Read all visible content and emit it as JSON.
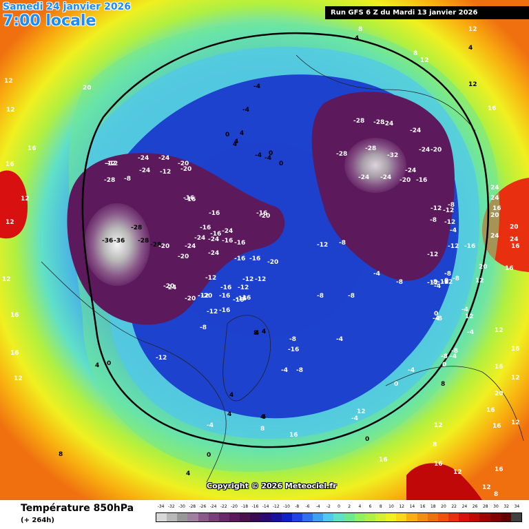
{
  "header": {
    "date_line": "Samedi 24 janvier 2026",
    "time_line": "7:00 locale",
    "run_banner": "Run GFS 6 Z du Mardi 13 janvier 2026"
  },
  "footer": {
    "parameter_title": "Température 850hPa",
    "forecast_hours": "(+ 264h)",
    "copyright": "Copyright © 2026 Meteociel.fr"
  },
  "legend": {
    "unit_values": [
      "-34",
      "-32",
      "-30",
      "-28",
      "-26",
      "-24",
      "-22",
      "-20",
      "-18",
      "-16",
      "-14",
      "-12",
      "-10",
      "-8",
      "-6",
      "-4",
      "-2",
      "0",
      "2",
      "4",
      "6",
      "8",
      "10",
      "12",
      "14",
      "16",
      "18",
      "20",
      "22",
      "24",
      "26",
      "28",
      "30",
      "32",
      "34"
    ],
    "colors": [
      "#d8d8d8",
      "#b8b8b8",
      "#989898",
      "#a080a0",
      "#8a5a8a",
      "#784078",
      "#6a2a6a",
      "#5c1a5c",
      "#4a124a",
      "#3a0a50",
      "#2a0a70",
      "#1a10a0",
      "#1020c8",
      "#2040e8",
      "#3070f0",
      "#40a0f0",
      "#50c8f0",
      "#60e0c8",
      "#70e890",
      "#90f060",
      "#b0f040",
      "#d0f030",
      "#f0f020",
      "#f8d818",
      "#f8b010",
      "#f09010",
      "#f07010",
      "#f05010",
      "#e83010",
      "#d81010",
      "#c00808",
      "#a00000",
      "#800000",
      "#600000",
      "#404040"
    ]
  },
  "map": {
    "labels": [
      {
        "t": "-36",
        "c": "dark"
      },
      {
        "t": "-36",
        "c": "dark"
      },
      {
        "t": "-28",
        "c": "dark"
      },
      {
        "t": "-28",
        "c": "dark"
      },
      {
        "t": "-28",
        "c": "dark"
      },
      {
        "t": "-24",
        "c": "w"
      },
      {
        "t": "-24",
        "c": "w"
      },
      {
        "t": "-20",
        "c": "w"
      },
      {
        "t": "-20",
        "c": "w"
      },
      {
        "t": "-24",
        "c": "w"
      },
      {
        "t": "-24",
        "c": "w"
      },
      {
        "t": "-24",
        "c": "w"
      },
      {
        "t": "-20",
        "c": "w"
      },
      {
        "t": "-24",
        "c": "w"
      },
      {
        "t": "-16",
        "c": "w"
      },
      {
        "t": "-16",
        "c": "w"
      },
      {
        "t": "-24",
        "c": "w"
      },
      {
        "t": "-16",
        "c": "w"
      },
      {
        "t": "-16",
        "c": "w"
      },
      {
        "t": "-20",
        "c": "w"
      },
      {
        "t": "-16",
        "c": "w"
      },
      {
        "t": "-12",
        "c": "w"
      },
      {
        "t": "-12",
        "c": "w"
      },
      {
        "t": "-16",
        "c": "w"
      },
      {
        "t": "-12",
        "c": "w"
      },
      {
        "t": "-12",
        "c": "w"
      },
      {
        "t": "-8",
        "c": "w"
      },
      {
        "t": "-12",
        "c": "w"
      },
      {
        "t": "-8",
        "c": "w"
      },
      {
        "t": "-12",
        "c": "w"
      },
      {
        "t": "-16",
        "c": "w"
      },
      {
        "t": "-20",
        "c": "w"
      },
      {
        "t": "-16",
        "c": "w"
      },
      {
        "t": "-16",
        "c": "w"
      },
      {
        "t": "-20",
        "c": "w"
      },
      {
        "t": "-28",
        "c": "w"
      },
      {
        "t": "-24",
        "c": "w"
      },
      {
        "t": "-12",
        "c": "w"
      },
      {
        "t": "-20",
        "c": "w"
      },
      {
        "t": "-24",
        "c": "w"
      },
      {
        "t": "-20",
        "c": "w"
      },
      {
        "t": "-16",
        "c": "w"
      },
      {
        "t": "-16",
        "c": "w"
      },
      {
        "t": "-12",
        "c": "w"
      },
      {
        "t": "-12",
        "c": "w"
      },
      {
        "t": "-16",
        "c": "w"
      },
      {
        "t": "-16",
        "c": "w"
      },
      {
        "t": "-16",
        "c": "w"
      },
      {
        "t": "-12",
        "c": "w"
      },
      {
        "t": "-8",
        "c": "w"
      },
      {
        "t": "-4",
        "c": "w"
      },
      {
        "t": "-8",
        "c": "w"
      },
      {
        "t": "-4",
        "c": "w"
      },
      {
        "t": "-8",
        "c": "w"
      },
      {
        "t": "-8",
        "c": "w"
      },
      {
        "t": "-12",
        "c": "w"
      },
      {
        "t": "-8",
        "c": "w"
      },
      {
        "t": "-4",
        "c": "w"
      },
      {
        "t": "0",
        "c": "w"
      },
      {
        "t": "-4",
        "c": "w"
      },
      {
        "t": "-8",
        "c": "w"
      },
      {
        "t": "0",
        "c": "w"
      },
      {
        "t": "0",
        "c": "w"
      },
      {
        "t": "4",
        "c": "dark"
      },
      {
        "t": "4",
        "c": "dark"
      },
      {
        "t": "4",
        "c": "dark"
      },
      {
        "t": "0",
        "c": "dark"
      },
      {
        "t": "0",
        "c": "dark"
      },
      {
        "t": "-4",
        "c": "dark"
      },
      {
        "t": "-4",
        "c": "dark"
      },
      {
        "t": "0",
        "c": "dark"
      },
      {
        "t": "-4",
        "c": "dark"
      },
      {
        "t": "4",
        "c": "dark"
      },
      {
        "t": "4",
        "c": "dark"
      },
      {
        "t": "-4",
        "c": "dark"
      },
      {
        "t": "-12",
        "c": "w"
      },
      {
        "t": "-16",
        "c": "w"
      },
      {
        "t": "-20",
        "c": "w"
      },
      {
        "t": "-16",
        "c": "w"
      },
      {
        "t": "-28",
        "c": "w"
      },
      {
        "t": "-28",
        "c": "w"
      },
      {
        "t": "-24",
        "c": "w"
      },
      {
        "t": "-24",
        "c": "w"
      },
      {
        "t": "-20",
        "c": "w"
      },
      {
        "t": "-24",
        "c": "w"
      },
      {
        "t": "-32",
        "c": "w"
      },
      {
        "t": "-28",
        "c": "w"
      },
      {
        "t": "-28",
        "c": "w"
      },
      {
        "t": "-24",
        "c": "w"
      },
      {
        "t": "-24",
        "c": "w"
      },
      {
        "t": "-24",
        "c": "w"
      },
      {
        "t": "-20",
        "c": "w"
      },
      {
        "t": "-16",
        "c": "w"
      },
      {
        "t": "-12",
        "c": "w"
      },
      {
        "t": "-12",
        "c": "w"
      },
      {
        "t": "-8",
        "c": "w"
      },
      {
        "t": "-12",
        "c": "w"
      },
      {
        "t": "-4",
        "c": "w"
      },
      {
        "t": "-8",
        "c": "w"
      },
      {
        "t": "-12",
        "c": "w"
      },
      {
        "t": "-16",
        "c": "w"
      },
      {
        "t": "-12",
        "c": "w"
      },
      {
        "t": "-16",
        "c": "w"
      },
      {
        "t": "-12",
        "c": "w"
      },
      {
        "t": "-8",
        "c": "w"
      },
      {
        "t": "-8",
        "c": "w"
      },
      {
        "t": "-8",
        "c": "w"
      },
      {
        "t": "-4",
        "c": "w"
      },
      {
        "t": "-8",
        "c": "w"
      },
      {
        "t": "0",
        "c": "w"
      },
      {
        "t": "-4",
        "c": "w"
      },
      {
        "t": "-8",
        "c": "w"
      },
      {
        "t": "-16",
        "c": "w"
      },
      {
        "t": "-4",
        "c": "w"
      },
      {
        "t": "-8",
        "c": "w"
      },
      {
        "t": "-4",
        "c": "w"
      },
      {
        "t": "-4",
        "c": "w"
      },
      {
        "t": "4",
        "c": "dark"
      },
      {
        "t": "4",
        "c": "dark"
      },
      {
        "t": "8",
        "c": "dark"
      },
      {
        "t": "4",
        "c": "dark"
      },
      {
        "t": "4",
        "c": "dark"
      },
      {
        "t": "16",
        "c": "w"
      },
      {
        "t": "16",
        "c": "w"
      },
      {
        "t": "12",
        "c": "w"
      },
      {
        "t": "12",
        "c": "w"
      },
      {
        "t": "8",
        "c": "dark"
      },
      {
        "t": "12",
        "c": "dark"
      },
      {
        "t": "16",
        "c": "w"
      },
      {
        "t": "12",
        "c": "w"
      },
      {
        "t": "20",
        "c": "w"
      },
      {
        "t": "16",
        "c": "w"
      },
      {
        "t": "12",
        "c": "w"
      },
      {
        "t": "12",
        "c": "w"
      },
      {
        "t": "16",
        "c": "w"
      },
      {
        "t": "12",
        "c": "w"
      },
      {
        "t": "16",
        "c": "w"
      },
      {
        "t": "16",
        "c": "w"
      },
      {
        "t": "12",
        "c": "w"
      },
      {
        "t": "8",
        "c": "dark"
      },
      {
        "t": "20",
        "c": "w"
      },
      {
        "t": "24",
        "c": "w"
      },
      {
        "t": "24",
        "c": "w"
      },
      {
        "t": "20",
        "c": "w"
      },
      {
        "t": "24",
        "c": "w"
      },
      {
        "t": "16",
        "c": "w"
      },
      {
        "t": "16",
        "c": "w"
      },
      {
        "t": "12",
        "c": "w"
      },
      {
        "t": "12",
        "c": "w"
      },
      {
        "t": "16",
        "c": "w"
      },
      {
        "t": "16",
        "c": "w"
      },
      {
        "t": "12",
        "c": "w"
      },
      {
        "t": "20",
        "c": "w"
      },
      {
        "t": "20",
        "c": "w"
      },
      {
        "t": "24",
        "c": "w"
      },
      {
        "t": "16",
        "c": "w"
      },
      {
        "t": "16",
        "c": "w"
      },
      {
        "t": "12",
        "c": "w"
      },
      {
        "t": "12",
        "c": "w"
      },
      {
        "t": "8",
        "c": "w"
      },
      {
        "t": "16",
        "c": "w"
      },
      {
        "t": "12",
        "c": "w"
      },
      {
        "t": "16",
        "c": "w"
      },
      {
        "t": "12",
        "c": "w"
      },
      {
        "t": "8",
        "c": "w"
      },
      {
        "t": "12",
        "c": "w"
      },
      {
        "t": "4",
        "c": "dark"
      },
      {
        "t": "8",
        "c": "w"
      },
      {
        "t": "12",
        "c": "w"
      },
      {
        "t": "8",
        "c": "w"
      },
      {
        "t": "4",
        "c": "dark"
      },
      {
        "t": "0",
        "c": "dark"
      },
      {
        "t": "0",
        "c": "dark"
      },
      {
        "t": "4",
        "c": "dark"
      },
      {
        "t": "-4",
        "c": "w"
      },
      {
        "t": "4",
        "c": "dark"
      },
      {
        "t": "-4",
        "c": "w"
      },
      {
        "t": "0",
        "c": "dark"
      },
      {
        "t": "4",
        "c": "dark"
      },
      {
        "t": "8",
        "c": "w"
      },
      {
        "t": "12",
        "c": "w"
      },
      {
        "t": "16",
        "c": "w"
      }
    ]
  }
}
